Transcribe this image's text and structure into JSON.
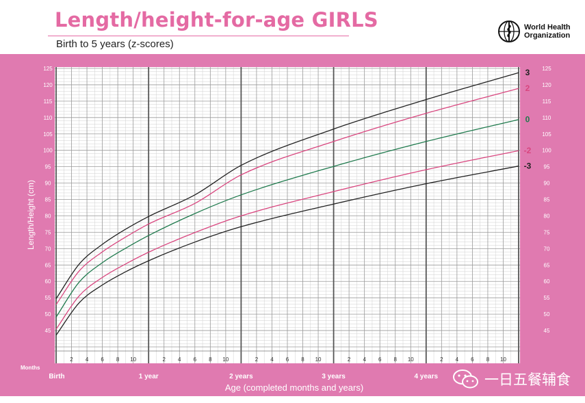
{
  "header": {
    "title": "Length/height-for-age GIRLS",
    "subtitle": "Birth to 5 years (z-scores)",
    "org_line1": "World Health",
    "org_line2": "Organization"
  },
  "watermark": {
    "text": "一日五餐辅食",
    "icon": "wechat-icon"
  },
  "colors": {
    "frame": "#e07ab0",
    "title": "#e46aa3",
    "z3": "#222222",
    "z2": "#d9467f",
    "z0": "#1f7a4d"
  },
  "chart_data": {
    "type": "line",
    "title": "Length/height-for-age GIRLS",
    "subtitle": "Birth to 5 years (z-scores)",
    "xlabel": "Age (completed months and years)",
    "ylabel": "Length/Height (cm)",
    "x_unit_label": "Months",
    "xlim": [
      0,
      60
    ],
    "ylim": [
      40,
      125
    ],
    "grid": true,
    "x_major_labels": [
      {
        "x": 0,
        "label": "Birth"
      },
      {
        "x": 12,
        "label": "1 year"
      },
      {
        "x": 24,
        "label": "2 years"
      },
      {
        "x": 36,
        "label": "3 years"
      },
      {
        "x": 48,
        "label": "4 years"
      }
    ],
    "x_month_ticks": [
      "2",
      "4",
      "6",
      "8",
      "10"
    ],
    "y_ticks": [
      45,
      50,
      55,
      60,
      65,
      70,
      75,
      80,
      85,
      90,
      95,
      100,
      105,
      110,
      115,
      120,
      125
    ],
    "x": [
      0,
      3,
      6,
      9,
      12,
      18,
      24,
      36,
      48,
      60
    ],
    "series": [
      {
        "name": "3",
        "color": "#222222",
        "values": [
          54.7,
          65.3,
          71.3,
          75.9,
          79.8,
          86.4,
          95.4,
          106.5,
          115.5,
          123.7
        ]
      },
      {
        "name": "2",
        "color": "#d9467f",
        "values": [
          52.9,
          63.2,
          69.0,
          73.5,
          77.5,
          83.8,
          92.5,
          102.7,
          111.3,
          118.9
        ]
      },
      {
        "name": "0",
        "color": "#1f7a4d",
        "values": [
          49.1,
          59.8,
          65.7,
          70.1,
          74.0,
          80.7,
          86.4,
          95.1,
          102.7,
          109.4
        ]
      },
      {
        "name": "-2",
        "color": "#d9467f",
        "values": [
          45.4,
          55.6,
          61.2,
          65.3,
          68.9,
          74.9,
          80.0,
          87.4,
          94.1,
          99.9
        ]
      },
      {
        "name": "-3",
        "color": "#222222",
        "values": [
          43.6,
          53.5,
          58.9,
          62.9,
          66.3,
          72.0,
          76.7,
          83.6,
          89.8,
          95.2
        ]
      }
    ]
  }
}
